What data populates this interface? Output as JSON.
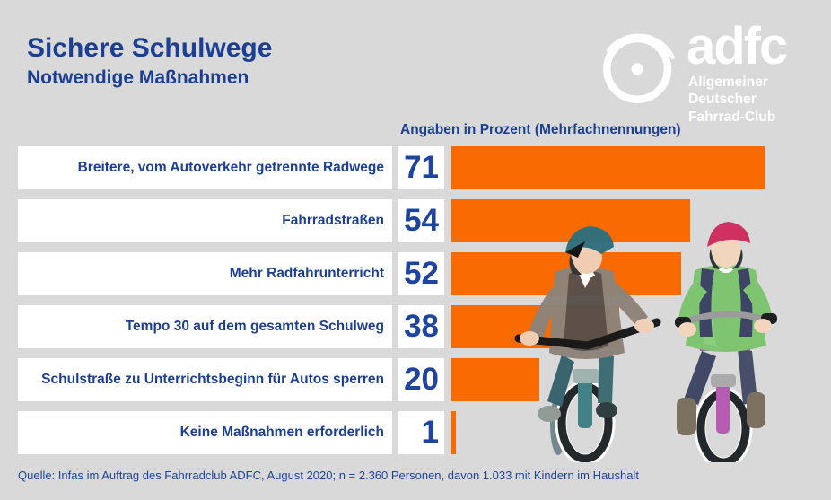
{
  "page": {
    "background": "#d9d9d9"
  },
  "header": {
    "title": "Sichere Schulwege",
    "subtitle": "Notwendige Maßnahmen"
  },
  "logo": {
    "wordmark": "adfc",
    "org_line1": "Allgemeiner Deutscher",
    "org_line2": "Fahrrad-Club",
    "icon": "bicycle-wheel-icon",
    "color": "#ffffff"
  },
  "chart_data": {
    "type": "bar",
    "orientation": "horizontal",
    "title": "Angaben in Prozent (Mehrfachnennungen)",
    "categories": [
      "Breitere, vom Autoverkehr getrennte Radwege",
      "Fahrradstraßen",
      "Mehr Radfahrunterricht",
      "Tempo 30 auf dem gesamten Schulweg",
      "Schulstraße zu Unterrichtsbeginn für Autos sperren",
      "Keine Maßnahmen erforderlich"
    ],
    "values": [
      71,
      54,
      52,
      38,
      20,
      1
    ],
    "unit": "percent",
    "xlim": [
      0,
      100
    ],
    "grid": false,
    "legend": false,
    "bar_color": "#f96a00",
    "label_color": "#1c3f94",
    "value_color": "#1f44a0"
  },
  "footer": {
    "source": "Quelle: Infas im Auftrag des Fahrradclub ADFC, August 2020; n = 2.360 Personen, davon 1.033 mit Kindern im Haushalt"
  },
  "colors": {
    "background": "#d9d9d9",
    "panel": "#ffffff",
    "accent_orange": "#f96a00",
    "brand_blue": "#1c3f94"
  }
}
